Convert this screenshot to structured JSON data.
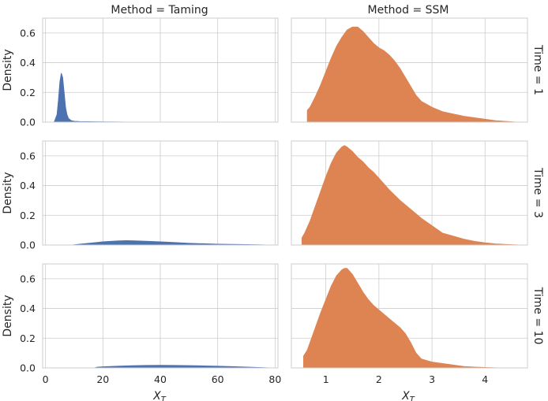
{
  "chart_data": {
    "type": "area",
    "col_facet_title_prefix": "Method = ",
    "row_facet_title_prefix": "Time = ",
    "columns": [
      "Taming",
      "SSM"
    ],
    "rows": [
      "1",
      "3",
      "10"
    ],
    "ylabel": "Density",
    "xlabel_base": "X",
    "xlabel_subscript": "T",
    "ylim": [
      0,
      0.7
    ],
    "yticks": [
      0.0,
      0.2,
      0.4,
      0.6
    ],
    "ytick_labels": [
      "0.0",
      "0.2",
      "0.4",
      "0.6"
    ],
    "grid": true,
    "column_axes": [
      {
        "xlim": [
          -1,
          81
        ],
        "xticks": [
          0,
          20,
          40,
          60,
          80
        ],
        "xtick_labels": [
          "0",
          "20",
          "40",
          "60",
          "80"
        ],
        "color": "#4c72b0"
      },
      {
        "xlim": [
          0.35,
          4.8
        ],
        "xticks": [
          1,
          2,
          3,
          4
        ],
        "xtick_labels": [
          "1",
          "2",
          "3",
          "4"
        ],
        "color": "#dd8452"
      }
    ],
    "panels": [
      {
        "row": "1",
        "col": "Taming",
        "x": [
          3,
          4,
          4.5,
          5,
          5.5,
          6,
          6.5,
          7,
          7.5,
          8,
          9,
          10,
          12,
          15,
          20,
          25,
          32
        ],
        "y": [
          0.0,
          0.05,
          0.15,
          0.27,
          0.33,
          0.3,
          0.2,
          0.1,
          0.05,
          0.025,
          0.01,
          0.006,
          0.004,
          0.003,
          0.002,
          0.001,
          0.0
        ]
      },
      {
        "row": "3",
        "col": "Taming",
        "x": [
          9,
          10,
          15,
          20,
          25,
          28,
          30,
          35,
          40,
          45,
          50,
          60,
          70,
          79
        ],
        "y": [
          0.0,
          0.002,
          0.012,
          0.022,
          0.028,
          0.03,
          0.029,
          0.026,
          0.022,
          0.017,
          0.012,
          0.006,
          0.003,
          0.0
        ]
      },
      {
        "row": "10",
        "col": "Taming",
        "x": [
          17,
          18,
          20,
          25,
          30,
          35,
          40,
          45,
          50,
          55,
          60,
          65,
          70,
          79
        ],
        "y": [
          0.0,
          0.005,
          0.008,
          0.012,
          0.015,
          0.017,
          0.018,
          0.017,
          0.016,
          0.014,
          0.012,
          0.009,
          0.006,
          0.0
        ]
      },
      {
        "row": "1",
        "col": "SSM",
        "x": [
          0.65,
          0.7,
          0.8,
          0.9,
          1.0,
          1.1,
          1.2,
          1.3,
          1.4,
          1.5,
          1.6,
          1.7,
          1.8,
          1.9,
          2.0,
          2.1,
          2.2,
          2.3,
          2.4,
          2.5,
          2.6,
          2.7,
          2.8,
          3.0,
          3.2,
          3.4,
          3.6,
          3.8,
          4.0,
          4.2,
          4.6
        ],
        "y": [
          0.08,
          0.1,
          0.17,
          0.25,
          0.34,
          0.43,
          0.51,
          0.57,
          0.62,
          0.64,
          0.64,
          0.61,
          0.57,
          0.53,
          0.5,
          0.48,
          0.45,
          0.41,
          0.36,
          0.3,
          0.24,
          0.18,
          0.14,
          0.1,
          0.07,
          0.055,
          0.04,
          0.03,
          0.02,
          0.01,
          0.0
        ]
      },
      {
        "row": "3",
        "col": "SSM",
        "x": [
          0.55,
          0.6,
          0.7,
          0.8,
          0.9,
          1.0,
          1.1,
          1.2,
          1.3,
          1.35,
          1.4,
          1.5,
          1.6,
          1.7,
          1.8,
          1.9,
          2.0,
          2.2,
          2.4,
          2.6,
          2.8,
          3.0,
          3.2,
          3.4,
          3.6,
          3.8,
          4.0,
          4.2,
          4.4,
          4.7
        ],
        "y": [
          0.05,
          0.08,
          0.16,
          0.26,
          0.36,
          0.46,
          0.55,
          0.62,
          0.66,
          0.67,
          0.66,
          0.63,
          0.59,
          0.56,
          0.52,
          0.49,
          0.45,
          0.37,
          0.3,
          0.24,
          0.18,
          0.13,
          0.08,
          0.06,
          0.04,
          0.025,
          0.015,
          0.008,
          0.004,
          0.0
        ]
      },
      {
        "row": "10",
        "col": "SSM",
        "x": [
          0.58,
          0.65,
          0.7,
          0.8,
          0.9,
          1.0,
          1.1,
          1.2,
          1.3,
          1.35,
          1.4,
          1.5,
          1.6,
          1.7,
          1.8,
          1.9,
          2.0,
          2.2,
          2.4,
          2.5,
          2.6,
          2.7,
          2.8,
          3.0,
          3.2,
          3.4,
          3.6,
          3.8,
          4.0,
          4.3
        ],
        "y": [
          0.08,
          0.12,
          0.17,
          0.27,
          0.37,
          0.46,
          0.55,
          0.62,
          0.66,
          0.67,
          0.67,
          0.63,
          0.57,
          0.51,
          0.46,
          0.42,
          0.39,
          0.33,
          0.27,
          0.23,
          0.17,
          0.1,
          0.06,
          0.04,
          0.03,
          0.02,
          0.01,
          0.006,
          0.003,
          0.0
        ]
      }
    ]
  }
}
